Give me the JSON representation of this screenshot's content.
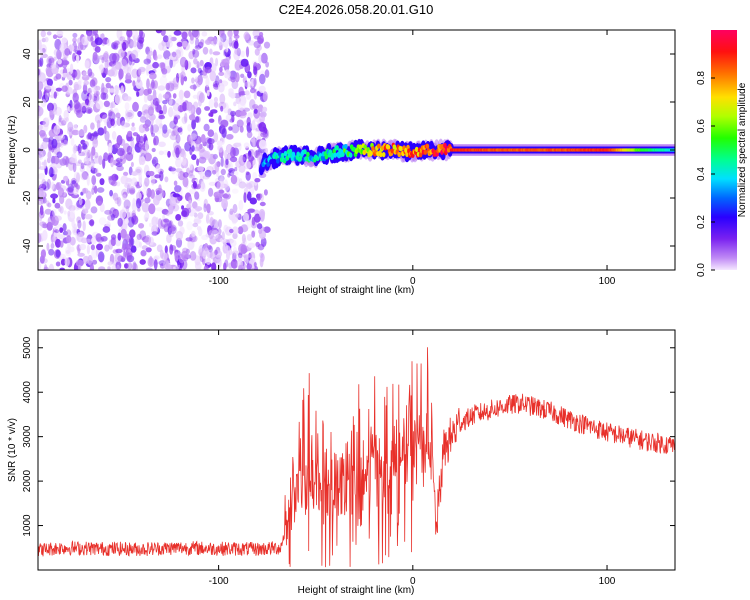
{
  "title": "C2E4.2026.058.20.01.G10",
  "colors": {
    "snr_line": "#e8302a",
    "spec_low": "#7a22f0",
    "background": "#ffffff",
    "axis": "#000000"
  },
  "chart_data": [
    {
      "type": "heatmap",
      "name": "spectrogram",
      "xlabel": "Height of straight line (km)",
      "ylabel": "Frequency (Hz)",
      "xlim": [
        -193,
        135
      ],
      "ylim": [
        -50,
        50
      ],
      "xticks": [
        -100,
        0,
        100
      ],
      "yticks": [
        -40,
        -20,
        0,
        20,
        40
      ],
      "xtick_labels": [
        "-100",
        "0",
        "100"
      ],
      "ytick_labels": [
        "-40",
        "-20",
        "0",
        "20",
        "40"
      ],
      "noise_region_x": [
        -193,
        -75
      ],
      "signal_track": {
        "x": [
          -78,
          -70,
          -60,
          -50,
          -40,
          -30,
          -20,
          -10,
          0,
          10,
          20,
          40,
          60,
          80,
          100,
          120,
          135
        ],
        "freq": [
          -6,
          -3,
          -2,
          -3,
          -1,
          0,
          0,
          0,
          -1,
          0,
          0,
          0,
          0,
          0,
          0,
          0,
          0
        ],
        "amplitude": [
          0.3,
          0.35,
          0.4,
          0.4,
          0.45,
          0.5,
          0.75,
          0.8,
          0.8,
          0.85,
          0.9,
          0.85,
          0.85,
          0.85,
          0.9,
          0.5,
          0.4
        ]
      },
      "colorbar": {
        "label": "Normalized spectral amplitude",
        "range": [
          0.0,
          1.0
        ],
        "ticks": [
          0.0,
          0.2,
          0.4,
          0.6,
          0.8
        ],
        "tick_labels": [
          "0.0",
          "0.2",
          "0.4",
          "0.6",
          "0.8"
        ]
      }
    },
    {
      "type": "line",
      "name": "snr",
      "xlabel": "Height of straight line (km)",
      "ylabel": "SNR (10 * v/v)",
      "xlim": [
        -193,
        135
      ],
      "ylim": [
        0,
        5400
      ],
      "xticks": [
        -100,
        0,
        100
      ],
      "yticks": [
        1000,
        2000,
        3000,
        4000,
        5000
      ],
      "xtick_labels": [
        "-100",
        "0",
        "100"
      ],
      "ytick_labels": [
        "1000",
        "2000",
        "3000",
        "4000",
        "5000"
      ],
      "series": [
        {
          "name": "SNR",
          "x": [
            -193,
            -180,
            -160,
            -140,
            -120,
            -100,
            -80,
            -68,
            -62,
            -56,
            -50,
            -44,
            -38,
            -32,
            -26,
            -20,
            -14,
            -8,
            -2,
            4,
            10,
            12,
            16,
            24,
            32,
            40,
            48,
            56,
            64,
            72,
            80,
            90,
            100,
            110,
            120,
            135
          ],
          "y": [
            450,
            500,
            480,
            470,
            500,
            480,
            470,
            500,
            1600,
            2400,
            1700,
            2000,
            1900,
            2100,
            1800,
            2600,
            2300,
            2300,
            2700,
            3000,
            2500,
            900,
            2700,
            3300,
            3500,
            3600,
            3700,
            3750,
            3650,
            3550,
            3400,
            3250,
            3100,
            3000,
            2900,
            2800
          ]
        }
      ]
    }
  ]
}
